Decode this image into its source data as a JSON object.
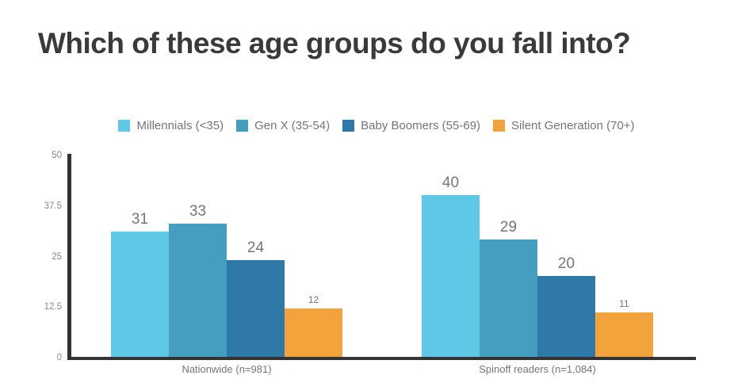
{
  "title": "Which of these age groups do you fall into?",
  "colors": {
    "title_text": "#3a3a3a",
    "axis": "#333333",
    "label_text": "#757575",
    "tick_text": "#888888",
    "millennials": "#5fc8e7",
    "gen_x": "#459ebf",
    "baby_boomers": "#2f79a9",
    "silent_generation": "#f2a33c"
  },
  "chart_data": {
    "type": "bar",
    "title": "Which of these age groups do you fall into?",
    "categories": [
      "Nationwide (n=981)",
      "Spinoff readers (n=1,084)"
    ],
    "series": [
      {
        "name": "Millennials (<35)",
        "color": "#5fc8e7",
        "values": [
          31,
          40
        ]
      },
      {
        "name": "Gen X (35-54)",
        "color": "#459ebf",
        "values": [
          33,
          29
        ]
      },
      {
        "name": "Baby Boomers (55-69)",
        "color": "#2f79a9",
        "values": [
          24,
          20
        ]
      },
      {
        "name": "Silent Generation (70+)",
        "color": "#f2a33c",
        "values": [
          12,
          11
        ]
      }
    ],
    "ylim": [
      0,
      50
    ],
    "yticks": [
      0,
      12.5,
      25,
      37.5,
      50
    ],
    "grid": false,
    "legend_position": "top",
    "xlabel": "",
    "ylabel": ""
  }
}
